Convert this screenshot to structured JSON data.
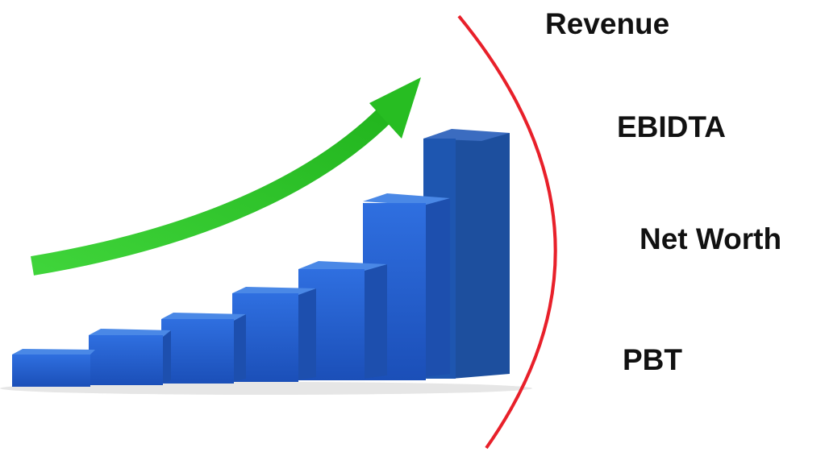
{
  "labels": [
    "Revenue",
    "EBIDTA",
    "Net Worth",
    "PBT"
  ]
}
